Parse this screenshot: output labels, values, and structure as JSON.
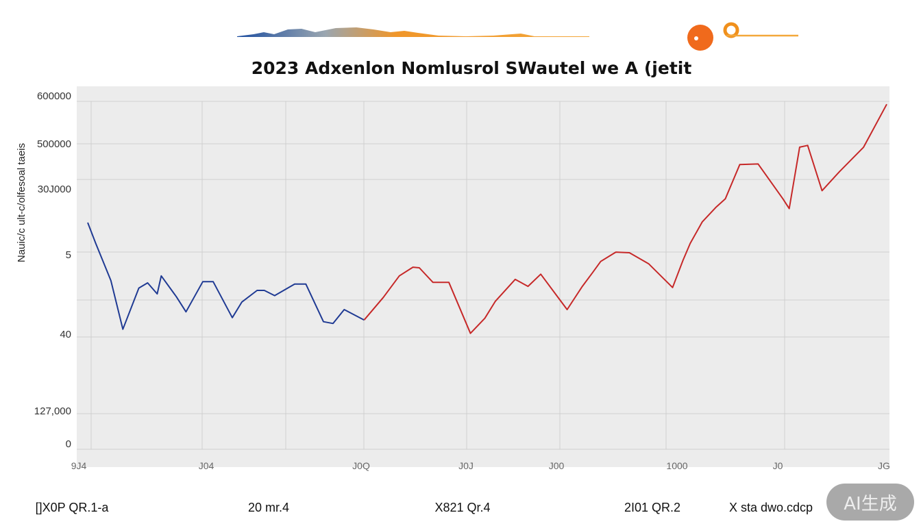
{
  "chart_data": {
    "type": "line",
    "title": "2023 Adxenlon Nomlusrol SWautel we A (jetit",
    "ylabel": "Nauic/c ult-c/olfesoal  taeis",
    "xlabel": "",
    "ylim": [
      0,
      600000
    ],
    "xlim": [
      0,
      100
    ],
    "grid": true,
    "y_tick_labels": [
      "600000",
      "500000",
      "30J000",
      "5",
      "40",
      "127,000",
      "0"
    ],
    "x_tick_labels": [
      "9J4",
      "J04",
      "J0Q",
      "J0J",
      "J00",
      "1000",
      "J0",
      "JG"
    ],
    "bottom_labels": [
      "[]X0P QR.1-a",
      "20 mr.4",
      "X821 Qr.4",
      "2I01 QR.2",
      "X sta dwo.cdcp"
    ],
    "series": [
      {
        "name": "blue",
        "color": "#1f3a93",
        "x": [
          0,
          1.0,
          2.9,
          4.4,
          6.4,
          7.5,
          8.7,
          9.2,
          11.1,
          12.3,
          14.4,
          15.7,
          18.1,
          19.3,
          21.2,
          22.1,
          23.4,
          25.9,
          27.3,
          29.5,
          30.7,
          32.1,
          34.6
        ],
        "y": [
          391000,
          355000,
          291000,
          207000,
          278000,
          287000,
          268000,
          299000,
          263000,
          237000,
          289000,
          289000,
          227000,
          254000,
          274000,
          274000,
          265000,
          285000,
          285000,
          220000,
          217000,
          241000,
          223000
        ]
      },
      {
        "name": "red",
        "color": "#c62828",
        "x": [
          34.6,
          37.0,
          39.0,
          40.7,
          41.5,
          43.2,
          45.2,
          47.9,
          49.7,
          51.0,
          53.5,
          55.1,
          56.7,
          58.7,
          60.0,
          61.9,
          63.2,
          64.2,
          66.1,
          67.8,
          70.2,
          73.2,
          74.5,
          75.4,
          76.9,
          78.6,
          79.8,
          81.6,
          83.9,
          87.0,
          87.8,
          89.1,
          90.1,
          91.9,
          94.1,
          97.1,
          100
        ],
        "y": [
          223000,
          262000,
          299000,
          314000,
          313000,
          288000,
          288000,
          200000,
          226000,
          255000,
          293000,
          281000,
          302000,
          265000,
          241000,
          281000,
          305000,
          324000,
          340000,
          339000,
          320000,
          279000,
          326000,
          355000,
          392000,
          417000,
          432000,
          491000,
          492000,
          432000,
          415000,
          521000,
          524000,
          446000,
          479000,
          521000,
          595000
        ]
      }
    ]
  },
  "watermark": "AI生成"
}
